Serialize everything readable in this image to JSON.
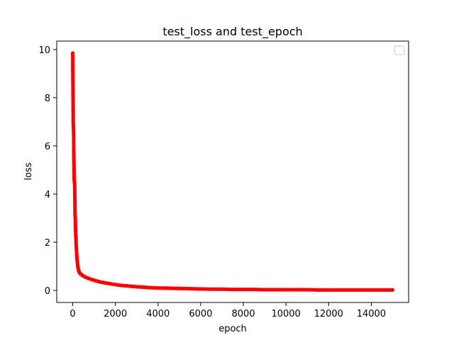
{
  "chart_data": {
    "type": "scatter",
    "title": "test_loss and test_epoch",
    "xlabel": "epoch",
    "ylabel": "loss",
    "xlim": [
      -750,
      15750
    ],
    "ylim": [
      -0.5,
      10.35
    ],
    "xticks": [
      0,
      2000,
      4000,
      6000,
      8000,
      10000,
      12000,
      14000
    ],
    "yticks": [
      0,
      2,
      4,
      6,
      8,
      10
    ],
    "grid": false,
    "legend": {
      "placement": "top-right",
      "entries": []
    },
    "series_color": "#ff0000",
    "series": [
      {
        "x": [
          0,
          5,
          10,
          15,
          20,
          25,
          30,
          40,
          50,
          60,
          70,
          80,
          90,
          100,
          110,
          120,
          130,
          140,
          150,
          160,
          170,
          180,
          190,
          200,
          210,
          220,
          230,
          240,
          250,
          260,
          270,
          280,
          290,
          300,
          320,
          340,
          360,
          380,
          400,
          430,
          460,
          500,
          550,
          600,
          700,
          800,
          900,
          1000,
          1200,
          1400,
          1600,
          1800,
          2000,
          2250,
          2500,
          2750,
          3000,
          3250,
          3500,
          3750,
          4000,
          4500,
          5000,
          5500,
          6000,
          6500,
          7000,
          7500,
          8000,
          8500,
          9000,
          9500,
          10000,
          10500,
          11000,
          11500,
          12000,
          12500,
          13000,
          13500,
          14000,
          14500,
          15000
        ],
        "values": [
          9.85,
          9.2,
          8.6,
          8.0,
          7.4,
          6.9,
          6.8,
          6.6,
          5.7,
          5.0,
          4.6,
          4.5,
          4.45,
          3.9,
          3.1,
          3.05,
          2.6,
          2.3,
          2.2,
          1.9,
          1.75,
          1.6,
          1.45,
          1.35,
          1.25,
          1.15,
          1.08,
          1.0,
          0.95,
          0.9,
          0.86,
          0.82,
          0.79,
          0.76,
          0.73,
          0.71,
          0.69,
          0.68,
          0.66,
          0.64,
          0.62,
          0.6,
          0.57,
          0.55,
          0.51,
          0.48,
          0.45,
          0.42,
          0.37,
          0.33,
          0.3,
          0.27,
          0.24,
          0.21,
          0.19,
          0.17,
          0.15,
          0.14,
          0.12,
          0.11,
          0.1,
          0.09,
          0.08,
          0.07,
          0.06,
          0.05,
          0.05,
          0.04,
          0.04,
          0.04,
          0.03,
          0.03,
          0.03,
          0.03,
          0.03,
          0.02,
          0.02,
          0.02,
          0.02,
          0.02,
          0.02,
          0.02,
          0.02
        ]
      }
    ]
  }
}
